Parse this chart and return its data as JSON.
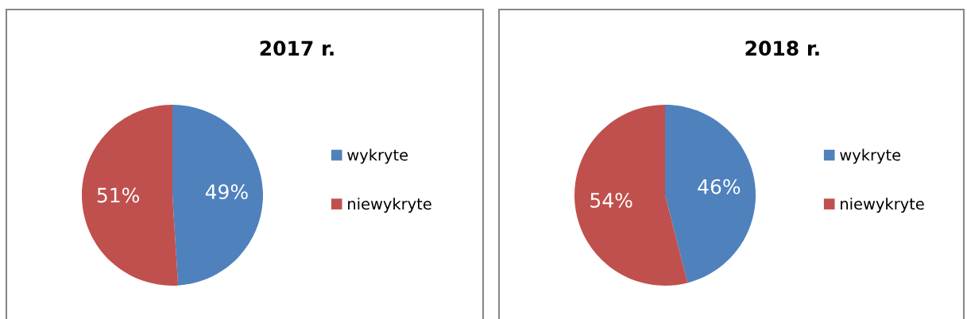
{
  "chart_data": [
    {
      "type": "pie",
      "title": "2017 r.",
      "categories": [
        "wykryte",
        "niewykryte"
      ],
      "values": [
        49,
        51
      ],
      "value_labels": [
        "49%",
        "51%"
      ],
      "colors": [
        "#4f81bd",
        "#c0504d"
      ],
      "legend": "right"
    },
    {
      "type": "pie",
      "title": "2018 r.",
      "categories": [
        "wykryte",
        "niewykryte"
      ],
      "values": [
        46,
        54
      ],
      "value_labels": [
        "46%",
        "54%"
      ],
      "colors": [
        "#4f81bd",
        "#c0504d"
      ],
      "legend": "right"
    }
  ]
}
